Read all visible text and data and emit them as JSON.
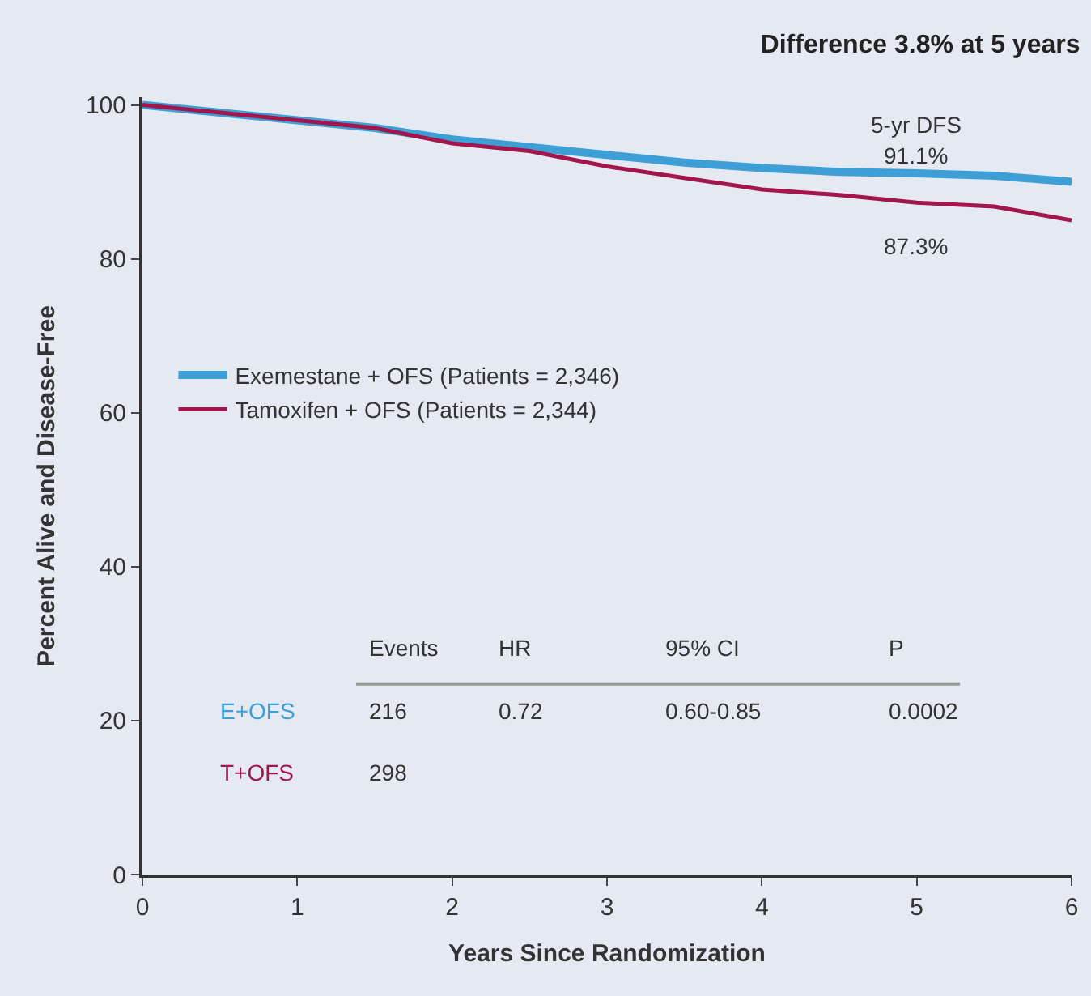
{
  "chart_data": {
    "type": "line",
    "title": "Difference 3.8% at 5 years",
    "xlabel": "Years Since Randomization",
    "ylabel": "Percent Alive and Disease-Free",
    "xlim": [
      0,
      6
    ],
    "ylim": [
      0,
      101
    ],
    "xticks": [
      0,
      1,
      2,
      3,
      4,
      5,
      6
    ],
    "yticks": [
      0,
      20,
      40,
      60,
      80,
      100
    ],
    "grid": false,
    "legend": "left",
    "marker": "none",
    "line_style": "solid",
    "series": [
      {
        "name": "Exemestane + OFS (Patients = 2,346)",
        "color": "#3d9fd6",
        "x": [
          0,
          0.5,
          1,
          1.5,
          2,
          2.5,
          3,
          3.5,
          4,
          4.5,
          5,
          5.5,
          6
        ],
        "values": [
          100,
          99,
          98,
          97,
          95.5,
          94.5,
          93.5,
          92.5,
          91.8,
          91.3,
          91.1,
          90.8,
          90
        ]
      },
      {
        "name": "Tamoxifen + OFS (Patients = 2,344)",
        "color": "#a3164b",
        "x": [
          0,
          0.5,
          1,
          1.5,
          2,
          2.5,
          3,
          3.5,
          4,
          4.5,
          5,
          5.5,
          6
        ],
        "values": [
          100,
          99,
          98,
          97,
          95,
          94,
          92,
          90.5,
          89,
          88.3,
          87.3,
          86.8,
          85
        ]
      }
    ],
    "annotations": [
      "5-yr DFS",
      "91.1%",
      "87.3%",
      "Events",
      "HR",
      "95% CI",
      "P",
      "E+OFS",
      "216",
      "0.72",
      "0.60-0.85",
      "0.0002",
      "T+OFS",
      "298"
    ]
  }
}
